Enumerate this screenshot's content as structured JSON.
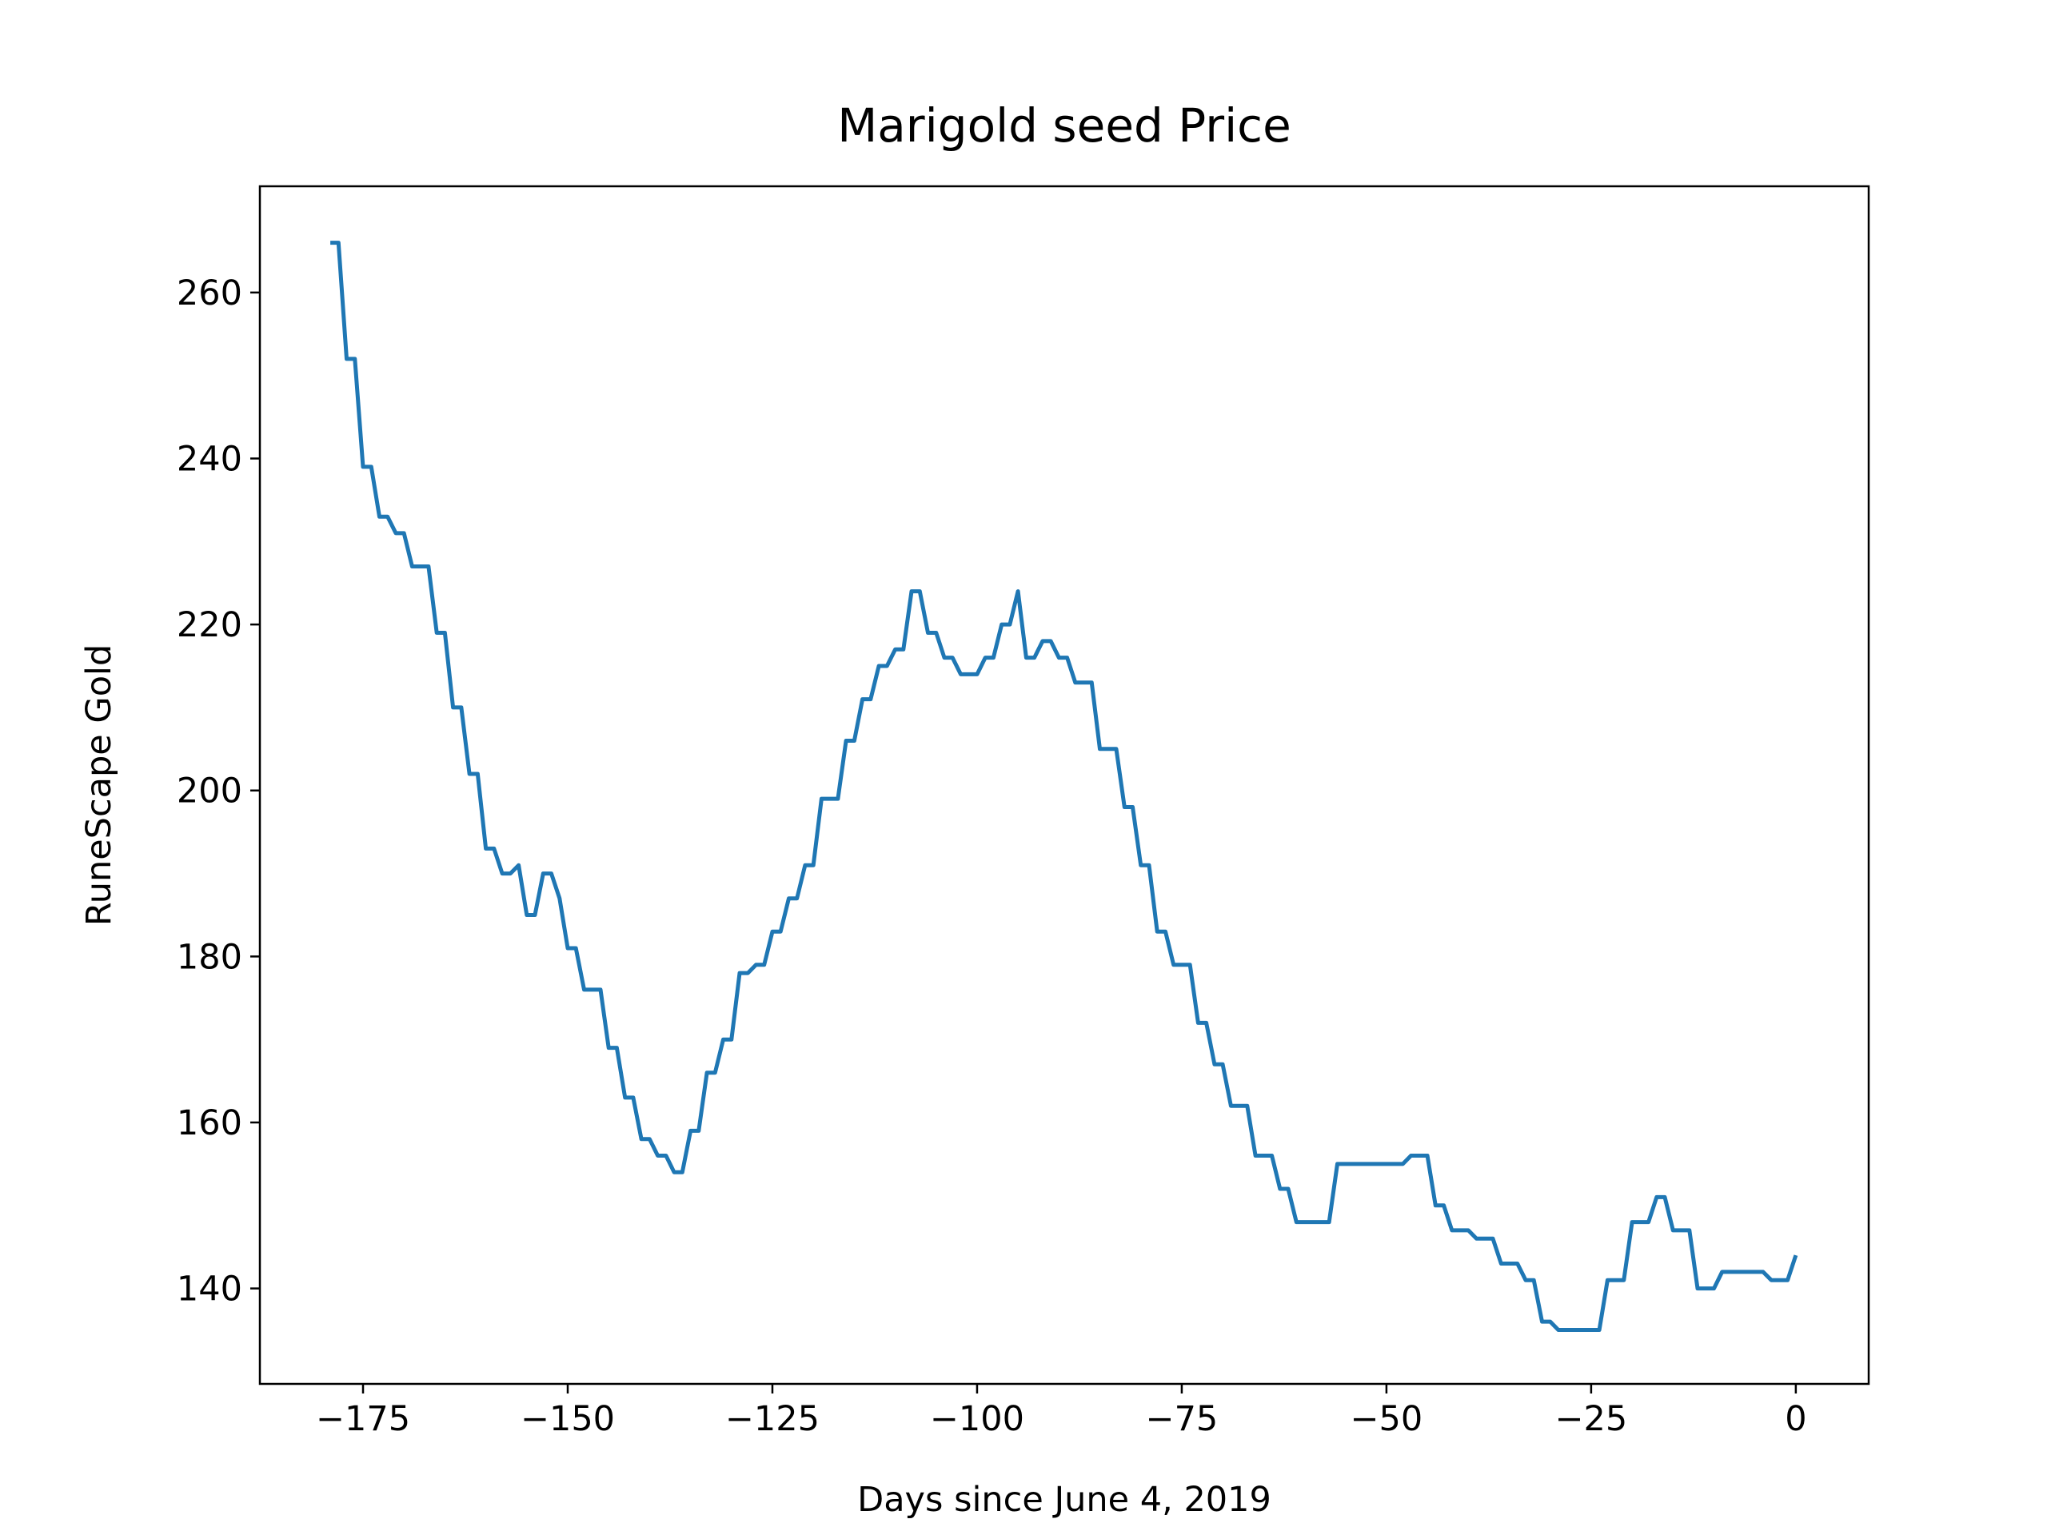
{
  "chart_data": {
    "type": "line",
    "title": "Marigold seed Price",
    "x_label": "Days since June 4, 2019",
    "y_label": "RuneScape Gold",
    "color": "#1f77b4",
    "x": [
      -179,
      -178,
      -177,
      -176,
      -175,
      -174,
      -173,
      -172,
      -171,
      -170,
      -169,
      -168,
      -167,
      -166,
      -165,
      -164,
      -163,
      -162,
      -161,
      -160,
      -159,
      -158,
      -157,
      -156,
      -155,
      -154,
      -153,
      -152,
      -151,
      -150,
      -149,
      -148,
      -147,
      -146,
      -145,
      -144,
      -143,
      -142,
      -141,
      -140,
      -139,
      -138,
      -137,
      -136,
      -135,
      -134,
      -133,
      -132,
      -131,
      -130,
      -129,
      -128,
      -127,
      -126,
      -125,
      -124,
      -123,
      -122,
      -121,
      -120,
      -119,
      -118,
      -117,
      -116,
      -115,
      -114,
      -113,
      -112,
      -111,
      -110,
      -109,
      -108,
      -107,
      -106,
      -105,
      -104,
      -103,
      -102,
      -101,
      -100,
      -99,
      -98,
      -97,
      -96,
      -95,
      -94,
      -93,
      -92,
      -91,
      -90,
      -89,
      -88,
      -87,
      -86,
      -85,
      -84,
      -83,
      -82,
      -81,
      -80,
      -79,
      -78,
      -77,
      -76,
      -75,
      -74,
      -73,
      -72,
      -71,
      -70,
      -69,
      -68,
      -67,
      -66,
      -65,
      -64,
      -63,
      -62,
      -61,
      -60,
      -59,
      -58,
      -57,
      -56,
      -55,
      -54,
      -53,
      -52,
      -51,
      -50,
      -49,
      -48,
      -47,
      -46,
      -45,
      -44,
      -43,
      -42,
      -41,
      -40,
      -39,
      -38,
      -37,
      -36,
      -35,
      -34,
      -33,
      -32,
      -31,
      -30,
      -29,
      -28,
      -27,
      -26,
      -25,
      -24,
      -23,
      -22,
      -21,
      -20,
      -19,
      -18,
      -17,
      -16,
      -15,
      -14,
      -13,
      -12,
      -11,
      -10,
      -9,
      -8,
      -7,
      -6,
      -5,
      -4,
      -3,
      -2,
      -1,
      0
    ],
    "values": [
      266,
      266,
      252,
      252,
      239,
      239,
      233,
      233,
      231,
      231,
      227,
      227,
      227,
      219,
      219,
      210,
      210,
      202,
      202,
      193,
      193,
      190,
      190,
      191,
      185,
      185,
      190,
      190,
      187,
      181,
      181,
      176,
      176,
      176,
      169,
      169,
      163,
      163,
      158,
      158,
      156,
      156,
      154,
      154,
      159,
      159,
      166,
      166,
      170,
      170,
      178,
      178,
      179,
      179,
      183,
      183,
      187,
      187,
      191,
      191,
      199,
      199,
      199,
      206,
      206,
      211,
      211,
      215,
      215,
      217,
      217,
      224,
      224,
      219,
      219,
      216,
      216,
      214,
      214,
      214,
      216,
      216,
      220,
      220,
      224,
      216,
      216,
      218,
      218,
      216,
      216,
      213,
      213,
      213,
      205,
      205,
      205,
      198,
      198,
      191,
      191,
      183,
      183,
      179,
      179,
      179,
      172,
      172,
      167,
      167,
      162,
      162,
      162,
      156,
      156,
      156,
      152,
      152,
      148,
      148,
      148,
      148,
      148,
      155,
      155,
      155,
      155,
      155,
      155,
      155,
      155,
      155,
      156,
      156,
      156,
      150,
      150,
      147,
      147,
      147,
      146,
      146,
      146,
      143,
      143,
      143,
      141,
      141,
      136,
      136,
      135,
      135,
      135,
      135,
      135,
      135,
      141,
      141,
      141,
      148,
      148,
      148,
      151,
      151,
      147,
      147,
      147,
      140,
      140,
      140,
      142,
      142,
      142,
      142,
      142,
      142,
      141,
      141,
      141,
      144
    ],
    "xlim": [
      -187.6,
      8.9
    ],
    "ylim": [
      128.5,
      272.8
    ],
    "xticks": [
      {
        "value": -175,
        "label": "−175"
      },
      {
        "value": -150,
        "label": "−150"
      },
      {
        "value": -125,
        "label": "−125"
      },
      {
        "value": -100,
        "label": "−100"
      },
      {
        "value": -75,
        "label": "−75"
      },
      {
        "value": -50,
        "label": "−50"
      },
      {
        "value": -25,
        "label": "−25"
      },
      0
    ],
    "yticks": [
      140,
      160,
      180,
      200,
      220,
      240,
      260
    ]
  }
}
